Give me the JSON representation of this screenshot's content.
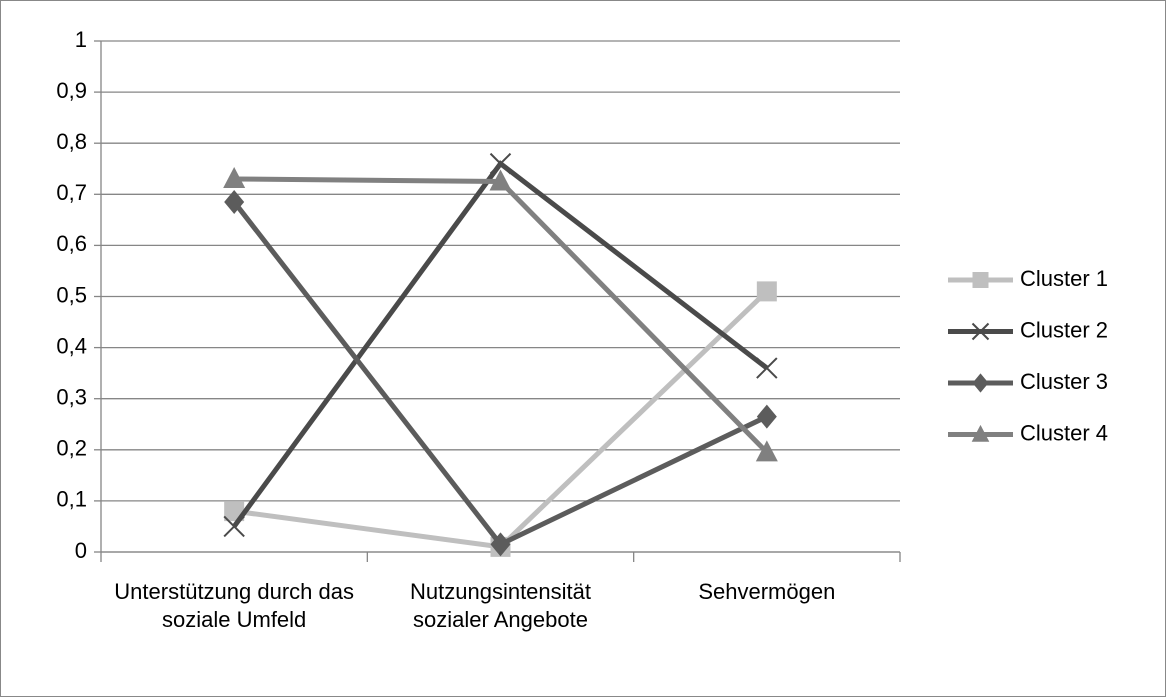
{
  "chart_data": {
    "type": "line",
    "categories": [
      "Unterstützung durch das soziale Umfeld",
      "Nutzungsintensität sozialer Angebote",
      "Sehvermögen"
    ],
    "series": [
      {
        "name": "Cluster 1",
        "color": "#bfbfbf",
        "marker": "square",
        "values": [
          0.08,
          0.01,
          0.51
        ]
      },
      {
        "name": "Cluster 2",
        "color": "#4a4a4a",
        "marker": "x",
        "values": [
          0.05,
          0.76,
          0.36
        ]
      },
      {
        "name": "Cluster 3",
        "color": "#5c5c5c",
        "marker": "diamond",
        "values": [
          0.685,
          0.015,
          0.265
        ]
      },
      {
        "name": "Cluster 4",
        "color": "#808080",
        "marker": "triangle",
        "values": [
          0.73,
          0.725,
          0.195
        ]
      }
    ],
    "ylim": [
      0,
      1
    ],
    "yticks": [
      0,
      {
        "value": 0.1,
        "label": "0,1"
      },
      {
        "value": 0.2,
        "label": "0,2"
      },
      {
        "value": 0.3,
        "label": "0,3"
      },
      {
        "value": 0.4,
        "label": "0,4"
      },
      {
        "value": 0.5,
        "label": "0,5"
      },
      {
        "value": 0.6,
        "label": "0,6"
      },
      {
        "value": 0.7,
        "label": "0,7"
      },
      {
        "value": 0.8,
        "label": "0,8"
      },
      {
        "value": 0.9,
        "label": "0,9"
      },
      1
    ],
    "grid": true,
    "legend": "right"
  }
}
